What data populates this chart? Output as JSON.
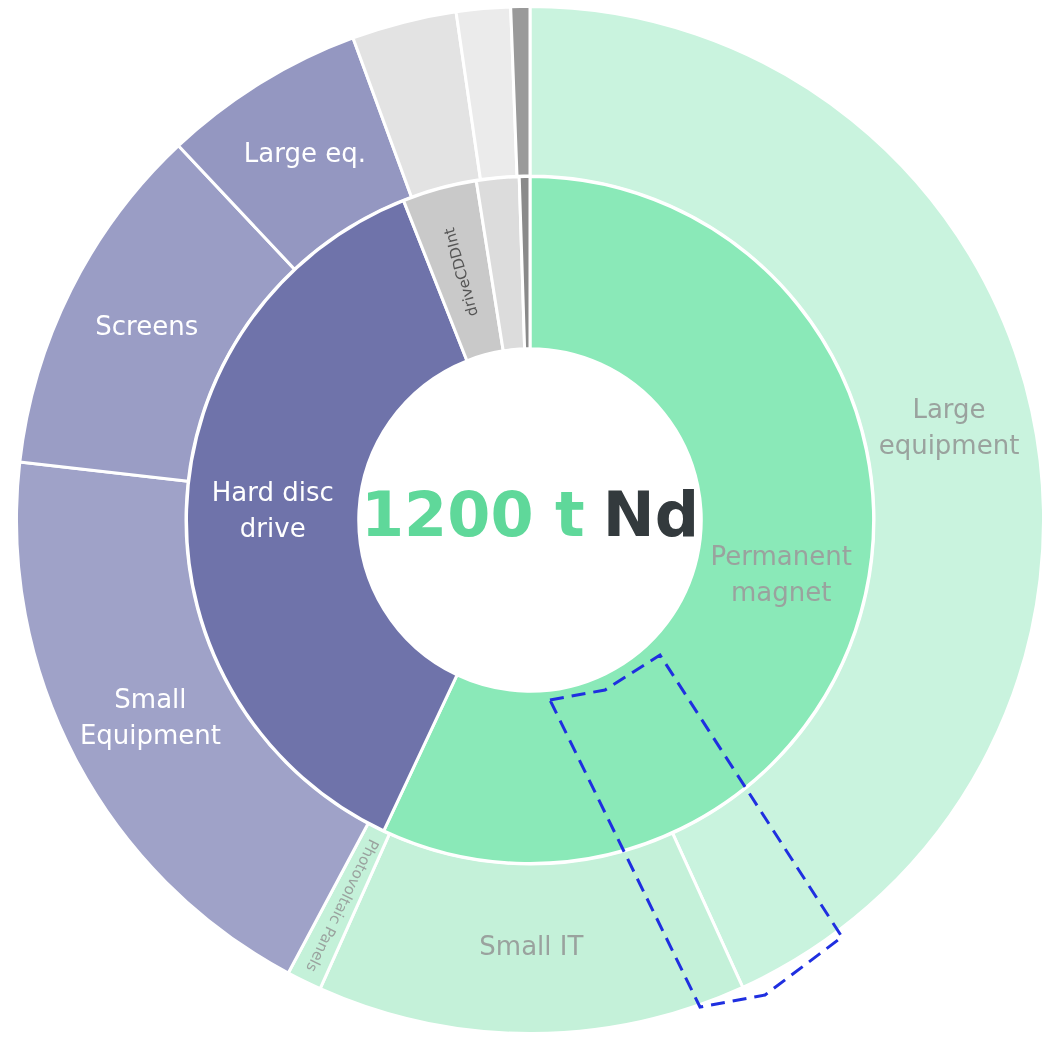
{
  "chart_data": [
    {
      "type": "donut",
      "categories": [
        "Large equipment",
        "Small IT",
        "Photovoltaic Panels",
        "Small Equipment",
        "Screens",
        "Large eq.",
        null,
        null,
        null
      ],
      "values": [
        43.2,
        13.5,
        1.1,
        19,
        11.2,
        6.4,
        3.3,
        1.7,
        0.6
      ],
      "colors": [
        "#c9f3de",
        "#c4f1d9",
        "#c4f1d9",
        "#9fa2c8",
        "#9a9dc5",
        "#9497c1",
        "#e3e3e3",
        "#ebebeb",
        "#9a9a9a"
      ]
    },
    {
      "type": "donut",
      "annotations": [
        "1200 t",
        "Nd"
      ],
      "categories": [
        "Permanent magnet",
        "Hard disc drive",
        "driveCDDInt",
        null,
        null
      ],
      "values": [
        57,
        37,
        3.5,
        2,
        0.5
      ],
      "colors": [
        "#8ae9b8",
        "#6f73aa",
        "#c9c9c9",
        "#dcdcdc",
        "#8a8a8a"
      ]
    }
  ]
}
